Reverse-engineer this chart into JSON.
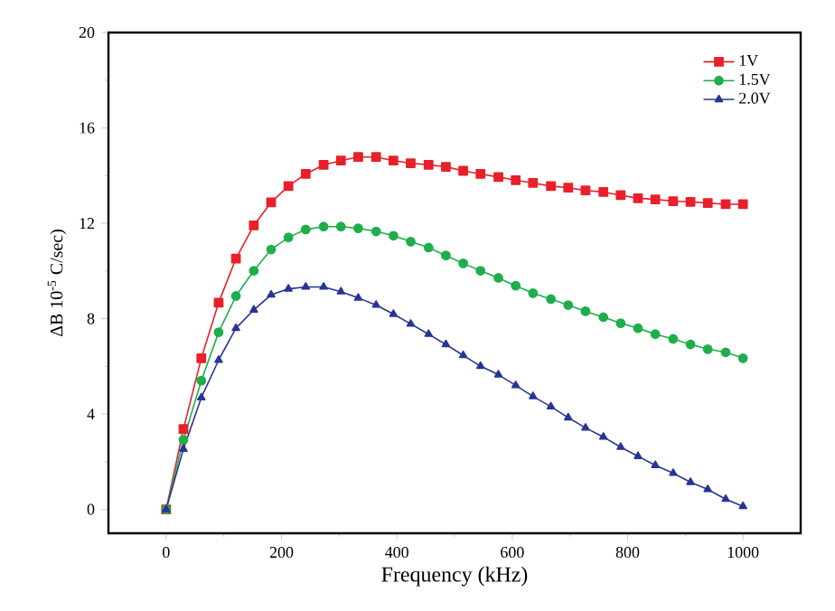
{
  "chart_data": {
    "type": "line",
    "xlabel": "Frequency (kHz)",
    "ylabel": "ΔB  10$^{-5}$ C/sec)",
    "x": [
      0,
      30,
      61,
      91,
      121,
      152,
      182,
      212,
      242,
      273,
      303,
      333,
      364,
      394,
      424,
      455,
      485,
      515,
      545,
      576,
      606,
      636,
      667,
      697,
      727,
      758,
      788,
      818,
      848,
      879,
      909,
      939,
      970,
      1000
    ],
    "series": [
      {
        "name": "1V",
        "color": "#e8202a",
        "marker": "square",
        "values": [
          0,
          3.37,
          6.34,
          8.67,
          10.52,
          11.91,
          12.88,
          13.56,
          14.07,
          14.45,
          14.63,
          14.78,
          14.78,
          14.63,
          14.52,
          14.45,
          14.37,
          14.2,
          14.07,
          13.94,
          13.81,
          13.69,
          13.56,
          13.49,
          13.38,
          13.31,
          13.18,
          13.05,
          13.0,
          12.93,
          12.9,
          12.85,
          12.8,
          12.8
        ]
      },
      {
        "name": "1.5V",
        "color": "#1fae4b",
        "marker": "circle",
        "values": [
          0,
          2.92,
          5.4,
          7.43,
          8.95,
          10.01,
          10.9,
          11.41,
          11.74,
          11.86,
          11.86,
          11.79,
          11.66,
          11.48,
          11.23,
          10.98,
          10.65,
          10.32,
          10.01,
          9.71,
          9.38,
          9.07,
          8.82,
          8.57,
          8.31,
          8.06,
          7.81,
          7.6,
          7.35,
          7.15,
          6.92,
          6.72,
          6.59,
          6.34
        ]
      },
      {
        "name": "2.0V",
        "color": "#283593",
        "marker": "triangle",
        "values": [
          0,
          2.53,
          4.69,
          6.26,
          7.6,
          8.37,
          9.0,
          9.25,
          9.33,
          9.33,
          9.13,
          8.87,
          8.57,
          8.19,
          7.78,
          7.35,
          6.92,
          6.46,
          6.01,
          5.65,
          5.2,
          4.74,
          4.31,
          3.85,
          3.42,
          3.04,
          2.61,
          2.23,
          1.85,
          1.52,
          1.14,
          0.84,
          0.43,
          0.13
        ]
      }
    ],
    "xlim": [
      -100,
      1100
    ],
    "ylim": [
      -1,
      20
    ],
    "xticks": [
      0,
      200,
      400,
      600,
      800,
      1000
    ],
    "yticks": [
      0,
      4,
      8,
      12,
      16,
      20
    ],
    "legend": "top right",
    "grid": false,
    "line_style": "solid"
  }
}
